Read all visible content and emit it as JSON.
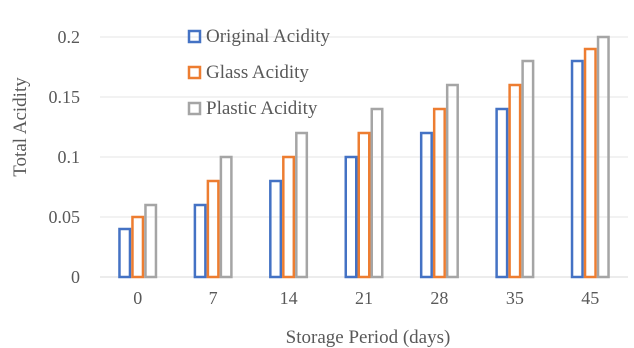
{
  "chart_data": {
    "type": "bar",
    "categories": [
      "0",
      "7",
      "14",
      "21",
      "28",
      "35",
      "45"
    ],
    "series": [
      {
        "name": "Original Acidity",
        "color": "#4472C4",
        "values": [
          0.04,
          0.06,
          0.08,
          0.1,
          0.12,
          0.14,
          0.18
        ]
      },
      {
        "name": "Glass Acidity",
        "color": "#ED7D31",
        "values": [
          0.05,
          0.08,
          0.1,
          0.12,
          0.14,
          0.16,
          0.19
        ]
      },
      {
        "name": "Plastic Acidity",
        "color": "#A5A5A5",
        "values": [
          0.06,
          0.1,
          0.12,
          0.14,
          0.16,
          0.18,
          0.2
        ]
      }
    ],
    "xlabel": "Storage Period (days)",
    "ylabel": "Total Acidity",
    "ylim": [
      0,
      0.2
    ],
    "yticks": [
      "0",
      "0.05",
      "0.1",
      "0.15",
      "0.2"
    ],
    "ytick_values": [
      0,
      0.05,
      0.1,
      0.15,
      0.2
    ],
    "grid": true,
    "bar_style": "outline",
    "legend_position": "top-left-inside"
  }
}
